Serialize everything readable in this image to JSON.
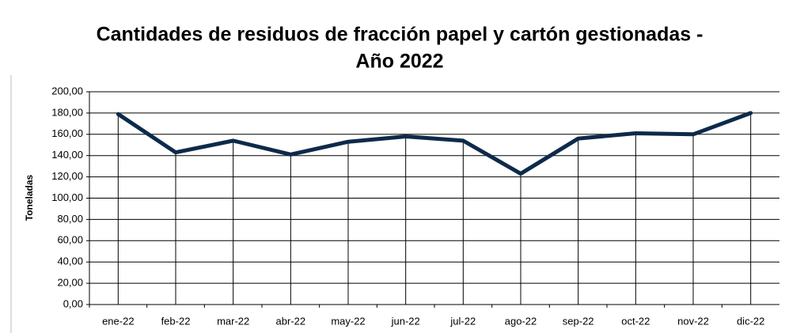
{
  "chart_data": {
    "type": "line",
    "title": [
      "Cantidades de residuos de fracción papel y cartón gestionadas -",
      "Año 2022"
    ],
    "ylabel": "Toneladas",
    "categories": [
      "ene-22",
      "feb-22",
      "mar-22",
      "abr-22",
      "may-22",
      "jun-22",
      "jul-22",
      "ago-22",
      "sep-22",
      "oct-22",
      "nov-22",
      "dic-22"
    ],
    "values": [
      179,
      143,
      154,
      141,
      153,
      158,
      154,
      123,
      156,
      161,
      160,
      180
    ],
    "color": "#0d2a4a",
    "drop_lines": true,
    "ylim": [
      0,
      200
    ],
    "yticks": [
      {
        "value": 0,
        "label": "0,00"
      },
      {
        "value": 20,
        "label": "20,00"
      },
      {
        "value": 40,
        "label": "40,00"
      },
      {
        "value": 60,
        "label": "60,00"
      },
      {
        "value": 80,
        "label": "80,00"
      },
      {
        "value": 100,
        "label": "100,00"
      },
      {
        "value": 120,
        "label": "120,00"
      },
      {
        "value": 140,
        "label": "140,00"
      },
      {
        "value": 160,
        "label": "160,00"
      },
      {
        "value": 180,
        "label": "180,00"
      },
      {
        "value": 200,
        "label": "200,00"
      }
    ],
    "grid": true
  }
}
